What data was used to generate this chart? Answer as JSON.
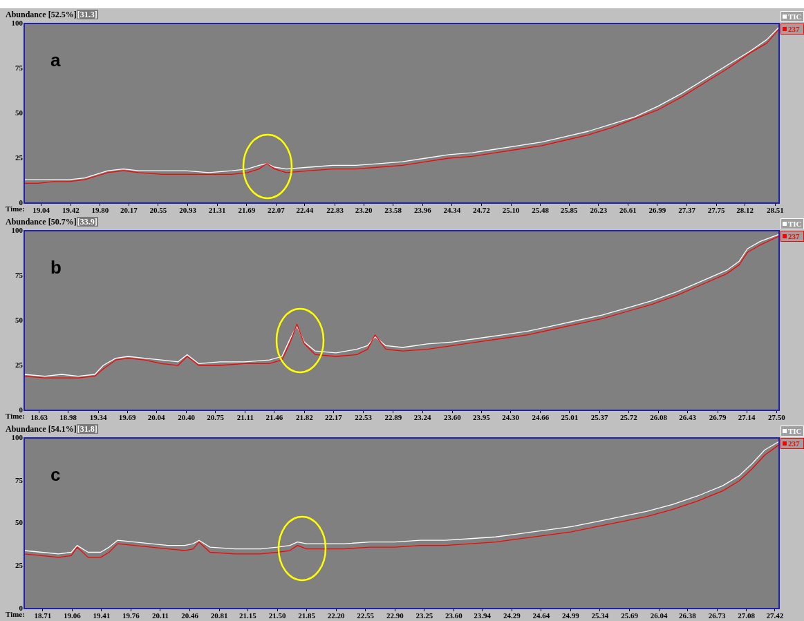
{
  "chart_data": [
    {
      "type": "line",
      "title": "Abundance [52.5%]",
      "subtitle": "[31.3]",
      "xlabel": "Time:",
      "annotations": [
        "a"
      ],
      "legend": "right",
      "marker": "none",
      "grid": false,
      "xlim": [
        18.82,
        28.56
      ],
      "xticks": [
        19.04,
        19.42,
        {
          "value": 19.8,
          "label": "19.80"
        },
        20.17,
        20.55,
        20.93,
        21.31,
        21.69,
        22.07,
        22.44,
        22.83,
        {
          "value": 23.2,
          "label": "23.20"
        },
        23.58,
        23.96,
        24.34,
        24.72,
        {
          "value": 25.1,
          "label": "25.10"
        },
        25.48,
        25.85,
        26.23,
        26.61,
        26.99,
        27.37,
        27.75,
        28.12,
        28.51
      ],
      "ylim": [
        0,
        100
      ],
      "yticks": [
        0,
        25,
        50,
        75,
        100
      ],
      "x": [
        18.82,
        19.0,
        19.2,
        19.4,
        19.6,
        19.75,
        19.9,
        20.1,
        20.3,
        20.6,
        20.9,
        21.2,
        21.5,
        21.7,
        21.85,
        21.95,
        22.05,
        22.2,
        22.5,
        22.8,
        23.1,
        23.4,
        23.7,
        24.0,
        24.3,
        24.6,
        24.9,
        25.2,
        25.5,
        25.8,
        26.1,
        26.4,
        26.7,
        27.0,
        27.3,
        27.6,
        27.9,
        28.2,
        28.4,
        28.56
      ],
      "series": [
        {
          "name": "TIC",
          "color": "#ffffff",
          "values": [
            13,
            13,
            13,
            13,
            14,
            16,
            18,
            19,
            18,
            18,
            18,
            17,
            18,
            19,
            21,
            22,
            20,
            19,
            20,
            21,
            21,
            22,
            23,
            25,
            27,
            28,
            30,
            32,
            34,
            37,
            40,
            44,
            48,
            54,
            61,
            69,
            77,
            85,
            91,
            98
          ]
        },
        {
          "name": "237",
          "color": "#ff0000",
          "values": [
            11,
            11,
            12,
            12,
            13,
            15,
            17,
            18,
            17,
            16,
            16,
            16,
            16,
            17,
            19,
            22,
            19,
            17,
            18,
            19,
            19,
            20,
            21,
            23,
            25,
            26,
            28,
            30,
            32,
            35,
            38,
            42,
            47,
            52,
            59,
            67,
            75,
            84,
            89,
            97
          ]
        }
      ]
    },
    {
      "type": "line",
      "title": "Abundance [50.7%]",
      "subtitle": "[33.9]",
      "xlabel": "Time:",
      "annotations": [
        "b"
      ],
      "legend": "right",
      "marker": "none",
      "grid": false,
      "xlim": [
        18.45,
        27.53
      ],
      "xticks": [
        18.63,
        18.98,
        19.34,
        19.69,
        20.04,
        {
          "value": 20.4,
          "label": "20.40"
        },
        20.75,
        21.11,
        21.46,
        21.82,
        22.17,
        22.53,
        22.89,
        23.24,
        {
          "value": 23.6,
          "label": "23.60"
        },
        23.95,
        {
          "value": 24.3,
          "label": "24.30"
        },
        24.66,
        25.01,
        25.37,
        25.72,
        26.08,
        26.43,
        26.79,
        27.14,
        {
          "value": 27.5,
          "label": "27.50"
        }
      ],
      "ylim": [
        0,
        100
      ],
      "yticks": [
        0,
        25,
        50,
        75,
        100
      ],
      "x": [
        18.45,
        18.7,
        18.9,
        19.1,
        19.3,
        19.4,
        19.55,
        19.7,
        19.9,
        20.1,
        20.3,
        20.41,
        20.55,
        20.8,
        21.1,
        21.4,
        21.55,
        21.65,
        21.73,
        21.82,
        21.95,
        22.2,
        22.45,
        22.58,
        22.67,
        22.8,
        23.0,
        23.3,
        23.6,
        23.9,
        24.2,
        24.5,
        24.8,
        25.1,
        25.4,
        25.7,
        26.0,
        26.3,
        26.6,
        26.9,
        27.05,
        27.15,
        27.3,
        27.53
      ],
      "series": [
        {
          "name": "TIC",
          "color": "#ffffff",
          "values": [
            20,
            19,
            20,
            19,
            20,
            25,
            29,
            30,
            29,
            28,
            27,
            31,
            26,
            27,
            27,
            28,
            30,
            40,
            47,
            38,
            33,
            32,
            34,
            36,
            41,
            36,
            35,
            37,
            38,
            40,
            42,
            44,
            47,
            50,
            53,
            57,
            61,
            66,
            72,
            78,
            83,
            90,
            94,
            98
          ]
        },
        {
          "name": "237",
          "color": "#ff0000",
          "values": [
            19,
            18,
            18,
            18,
            19,
            23,
            28,
            29,
            28,
            26,
            25,
            30,
            25,
            25,
            26,
            26,
            28,
            38,
            48,
            37,
            31,
            30,
            31,
            34,
            42,
            34,
            33,
            34,
            36,
            38,
            40,
            42,
            45,
            48,
            51,
            55,
            59,
            64,
            70,
            76,
            81,
            88,
            92,
            97
          ]
        }
      ]
    },
    {
      "type": "line",
      "title": "Abundance [54.1%]",
      "subtitle": "[31.8]",
      "xlabel": "Time:",
      "annotations": [
        "c"
      ],
      "legend": "right",
      "marker": "none",
      "grid": false,
      "xlim": [
        18.49,
        27.47
      ],
      "xticks": [
        18.71,
        19.06,
        19.41,
        19.76,
        20.11,
        20.46,
        20.81,
        21.15,
        {
          "value": 21.5,
          "label": "21.50"
        },
        21.85,
        {
          "value": 22.2,
          "label": "22.20"
        },
        22.55,
        {
          "value": 22.9,
          "label": "22.90"
        },
        23.25,
        {
          "value": 23.6,
          "label": "23.60"
        },
        23.94,
        24.29,
        24.64,
        24.99,
        25.34,
        25.69,
        26.04,
        26.38,
        26.73,
        27.08,
        27.42
      ],
      "ylim": [
        0,
        100
      ],
      "yticks": [
        0,
        25,
        50,
        75,
        100
      ],
      "x": [
        18.49,
        18.7,
        18.9,
        19.05,
        19.12,
        19.25,
        19.4,
        19.5,
        19.6,
        19.8,
        20.0,
        20.2,
        20.4,
        20.5,
        20.57,
        20.7,
        21.0,
        21.3,
        21.5,
        21.65,
        21.74,
        21.85,
        22.0,
        22.3,
        22.6,
        22.9,
        23.2,
        23.5,
        23.8,
        24.1,
        24.4,
        24.7,
        25.0,
        25.3,
        25.6,
        25.9,
        26.2,
        26.5,
        26.8,
        27.0,
        27.15,
        27.3,
        27.47
      ],
      "series": [
        {
          "name": "TIC",
          "color": "#ffffff",
          "values": [
            34,
            33,
            32,
            33,
            37,
            33,
            33,
            36,
            40,
            39,
            38,
            37,
            37,
            38,
            40,
            36,
            35,
            35,
            36,
            37,
            39,
            38,
            38,
            38,
            39,
            39,
            40,
            40,
            41,
            42,
            44,
            46,
            48,
            51,
            54,
            57,
            61,
            66,
            72,
            78,
            85,
            93,
            98
          ]
        },
        {
          "name": "237",
          "color": "#ff0000",
          "values": [
            32,
            31,
            30,
            31,
            36,
            30,
            30,
            33,
            38,
            37,
            36,
            35,
            34,
            35,
            39,
            33,
            32,
            32,
            33,
            34,
            37,
            35,
            35,
            35,
            36,
            36,
            37,
            37,
            38,
            39,
            41,
            43,
            45,
            48,
            51,
            54,
            58,
            63,
            69,
            75,
            82,
            90,
            96
          ]
        }
      ]
    }
  ]
}
